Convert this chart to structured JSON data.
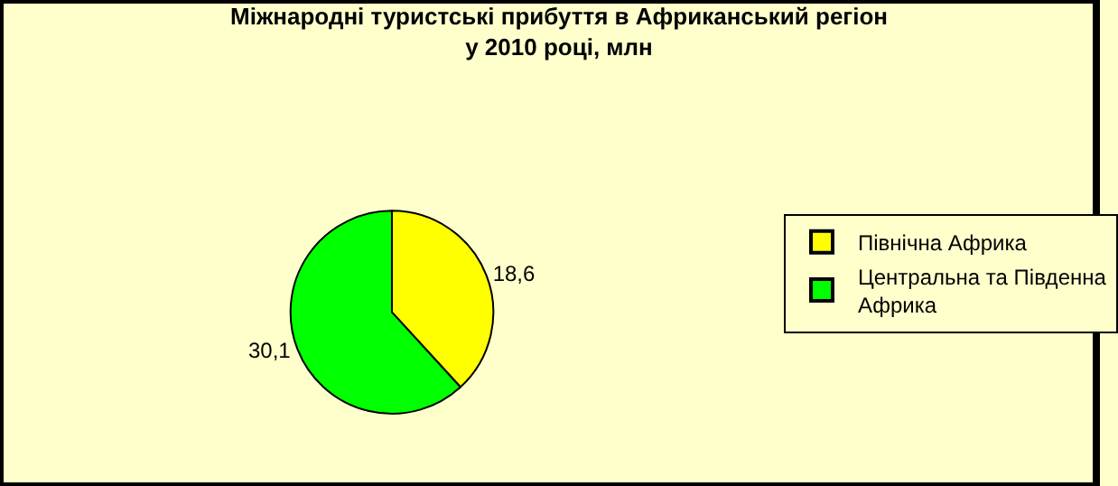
{
  "chart_data": {
    "type": "pie",
    "title": "Міжнародні туристські прибуття в Африканський регіон у 2010 році, млн",
    "categories": [
      "Північна Африка",
      "Центральна та Південна Африка"
    ],
    "values": [
      18.6,
      30.1
    ],
    "value_labels": [
      "18,6",
      "30,1"
    ],
    "colors": [
      "#ffff00",
      "#00ff00"
    ],
    "legend": "right"
  }
}
